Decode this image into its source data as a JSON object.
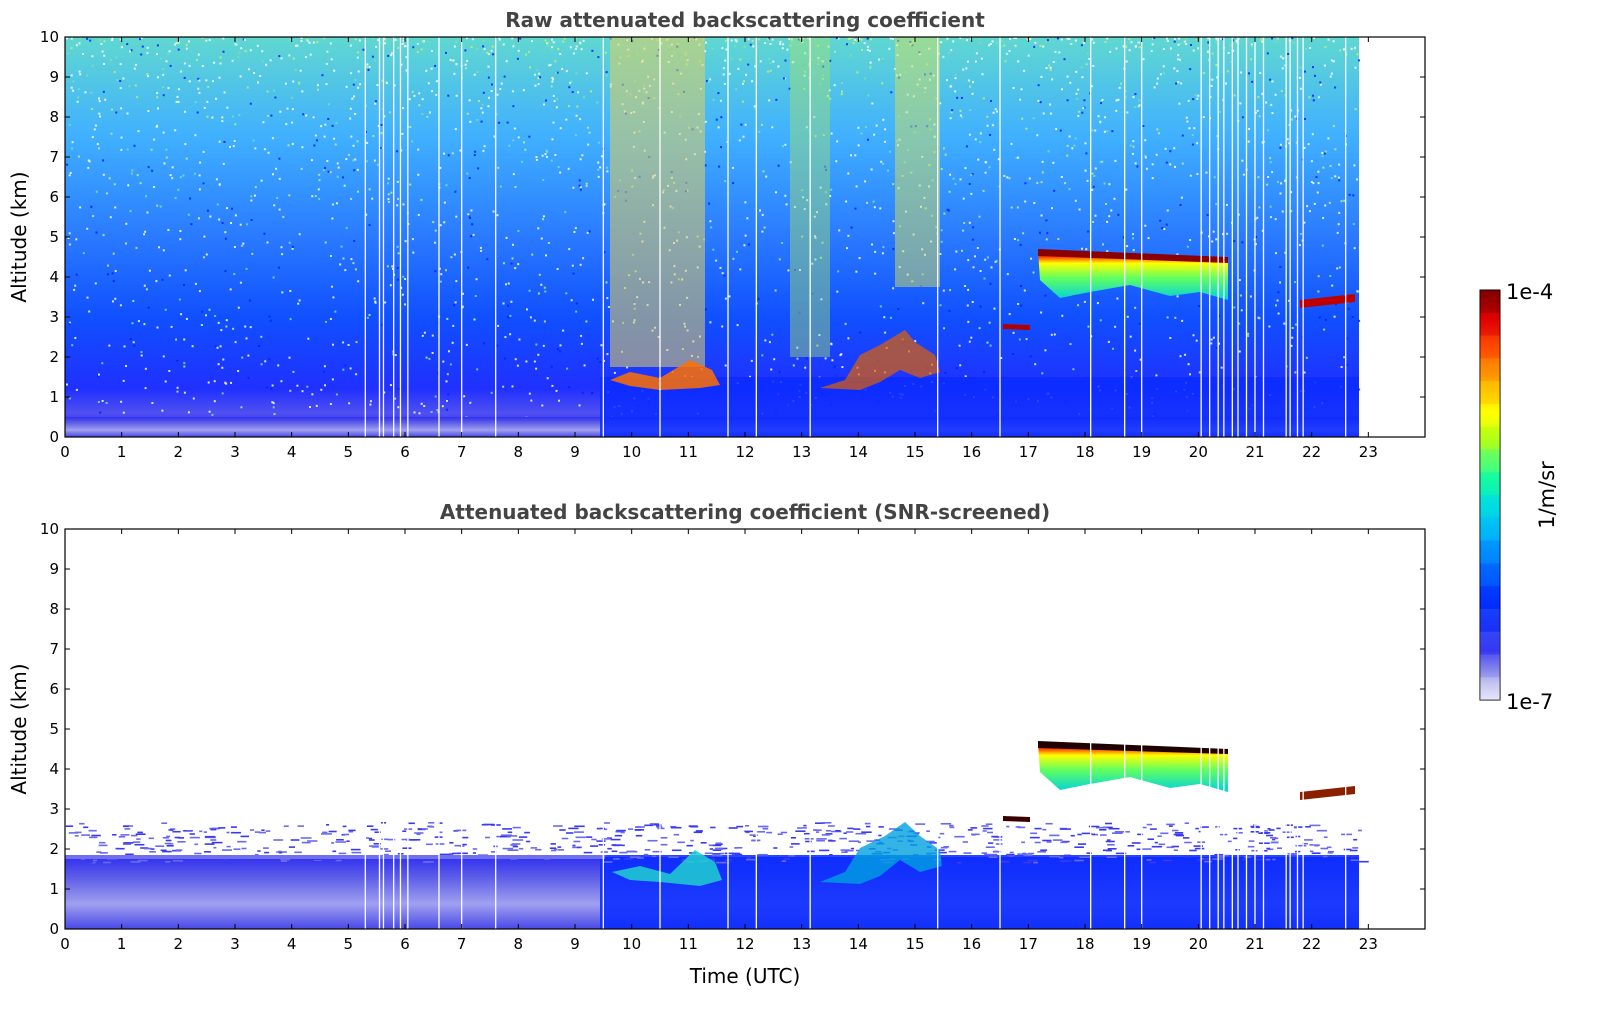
{
  "chart_data": [
    {
      "type": "heatmap",
      "title": "Raw attenuated backscattering coefficient",
      "xlabel": "",
      "ylabel": "Altitude (km)",
      "xlim": [
        0,
        24
      ],
      "ylim": [
        0,
        10
      ],
      "xticks": [
        "0",
        "1",
        "2",
        "3",
        "4",
        "5",
        "6",
        "7",
        "8",
        "9",
        "10",
        "11",
        "12",
        "13",
        "14",
        "15",
        "16",
        "17",
        "18",
        "19",
        "20",
        "21",
        "22",
        "23"
      ],
      "yticks": [
        "0",
        "1",
        "2",
        "3",
        "4",
        "5",
        "6",
        "7",
        "8",
        "9",
        "10"
      ],
      "data_end_time": 22.8,
      "features": [
        {
          "name": "boundary layer",
          "t_start": 0,
          "t_end": 22.8,
          "alt_top": 0.5
        },
        {
          "name": "upper cloud layer",
          "t_start": 17.1,
          "t_end": 20.5,
          "alt_base": 3.5,
          "alt_top": 4.6
        },
        {
          "name": "descending cloud layer",
          "t_start": 21.0,
          "t_end": 22.8,
          "alt_base": 3.2,
          "alt_top": 3.5
        },
        {
          "name": "low clouds",
          "t_start": 9.7,
          "t_end": 15.5,
          "alt_base": 1.1,
          "alt_top": 2.6
        },
        {
          "name": "mid cloud",
          "t_start": 16.5,
          "t_end": 17.0,
          "alt_base": 2.7,
          "alt_top": 2.8
        }
      ]
    },
    {
      "type": "heatmap",
      "title": "Attenuated backscattering coefficient (SNR-screened)",
      "xlabel": "Time (UTC)",
      "ylabel": "Altitude (km)",
      "xlim": [
        0,
        24
      ],
      "ylim": [
        0,
        10
      ],
      "xticks": [
        "0",
        "1",
        "2",
        "3",
        "4",
        "5",
        "6",
        "7",
        "8",
        "9",
        "10",
        "11",
        "12",
        "13",
        "14",
        "15",
        "16",
        "17",
        "18",
        "19",
        "20",
        "21",
        "22",
        "23"
      ],
      "yticks": [
        "0",
        "1",
        "2",
        "3",
        "4",
        "5",
        "6",
        "7",
        "8",
        "9",
        "10"
      ],
      "data_end_time": 22.8,
      "features": [
        {
          "name": "screened boundary layer",
          "t_start": 0,
          "t_end": 22.8,
          "alt_top": 1.8
        },
        {
          "name": "upper cloud layer",
          "t_start": 17.1,
          "t_end": 20.5,
          "alt_base": 3.5,
          "alt_top": 4.6
        },
        {
          "name": "descending cloud layer",
          "t_start": 21.0,
          "t_end": 22.8,
          "alt_base": 3.2,
          "alt_top": 3.5
        }
      ]
    }
  ],
  "colorbar": {
    "max_label": "1e-4",
    "min_label": "1e-7",
    "unit_label": "1/m/sr",
    "colors": [
      "#e6e6fa",
      "#b4b4ee",
      "#8080ec",
      "#3c3cf0",
      "#0000ff",
      "#0040ff",
      "#0080ff",
      "#00c0ff",
      "#00e0e0",
      "#00ffa0",
      "#60ff60",
      "#c0ff00",
      "#ffff00",
      "#ffc000",
      "#ff8000",
      "#ff4000",
      "#e00000",
      "#800000"
    ]
  }
}
